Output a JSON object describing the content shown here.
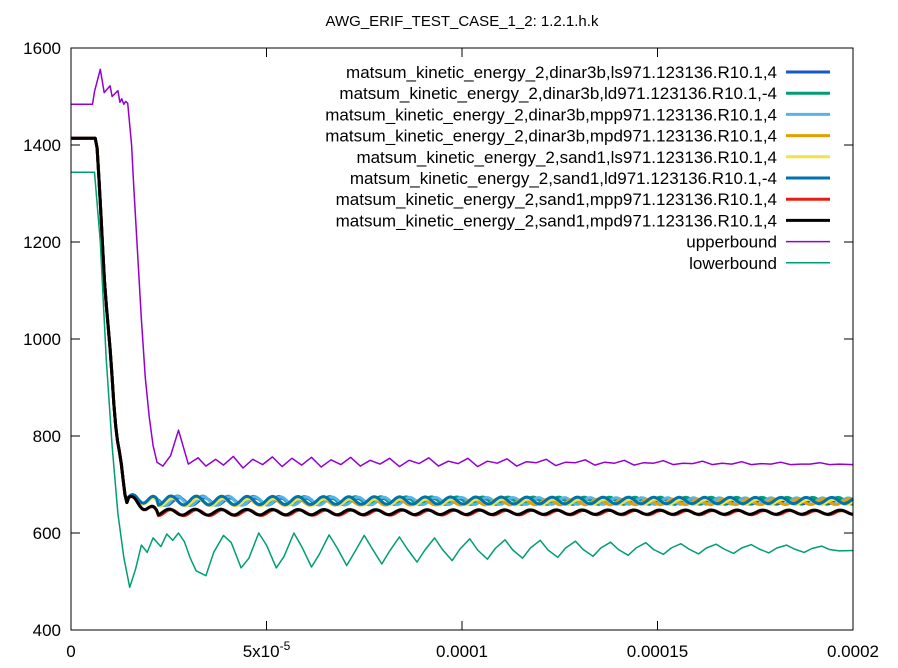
{
  "chart_data": {
    "type": "line",
    "title": "AWG_ERIF_TEST_CASE_1_2: 1.2.1.h.k",
    "xlabel": "",
    "ylabel": "",
    "xlim": [
      0,
      0.0002
    ],
    "ylim": [
      400,
      1600
    ],
    "x_ticks": [
      {
        "value": 0,
        "label": "0"
      },
      {
        "value": 5e-05,
        "label": "5x10",
        "sup": "-5"
      },
      {
        "value": 0.0001,
        "label": "0.0001"
      },
      {
        "value": 0.00015,
        "label": "0.00015"
      },
      {
        "value": 0.0002,
        "label": "0.0002"
      }
    ],
    "y_ticks": [
      400,
      600,
      800,
      1000,
      1200,
      1400,
      1600
    ],
    "grid": false,
    "legend_position": "top-right",
    "series": [
      {
        "name": "matsum_kinetic_energy_2,dinar3b,ls971.123136.R10.1,4",
        "color": "#1a55c8",
        "width": 3,
        "base": 665,
        "amp": 5,
        "period": 6.5e-06
      },
      {
        "name": "matsum_kinetic_energy_2,dinar3b,ld971.123136.R10.1,-4",
        "color": "#009e73",
        "width": 3,
        "base": 667,
        "amp": 6,
        "period": 6.5e-06
      },
      {
        "name": "matsum_kinetic_energy_2,dinar3b,mpp971.123136.R10.1,4",
        "color": "#56b4e9",
        "width": 3,
        "base": 666,
        "amp": 6,
        "period": 6.6e-06
      },
      {
        "name": "matsum_kinetic_energy_2,dinar3b,mpd971.123136.R10.1,4",
        "color": "#e69f00",
        "width": 3,
        "base": 664,
        "amp": 5,
        "period": 6.4e-06
      },
      {
        "name": "matsum_kinetic_energy_2,sand1,ls971.123136.R10.1,4",
        "color": "#f0e442",
        "width": 3,
        "base": 664,
        "amp": 5,
        "period": 6.5e-06
      },
      {
        "name": "matsum_kinetic_energy_2,sand1,ld971.123136.R10.1,-4",
        "color": "#0072b2",
        "width": 3,
        "base": 667,
        "amp": 6,
        "period": 6.5e-06
      },
      {
        "name": "matsum_kinetic_energy_2,sand1,mpp971.123136.R10.1,4",
        "color": "#e51e10",
        "width": 3,
        "base": 642,
        "amp": 4,
        "period": 6.6e-06
      },
      {
        "name": "matsum_kinetic_energy_2,sand1,mpd971.123136.R10.1,4",
        "color": "#000000",
        "width": 3,
        "base": 643,
        "amp": 4,
        "period": 6.6e-06
      },
      {
        "name": "upperbound",
        "color": "#9400d3",
        "width": 1.5,
        "x": [
          0,
          5.5e-06,
          6e-06,
          7.5e-06,
          8.5e-06,
          1e-05,
          1.05e-05,
          1.2e-05,
          1.25e-05,
          1.3e-05,
          1.35e-05,
          1.4e-05,
          1.45e-05,
          1.55e-05,
          1.6e-05,
          1.7e-05,
          1.8e-05,
          1.9e-05,
          2e-05,
          2.1e-05,
          2.2e-05,
          2.35e-05,
          2.55e-05,
          2.75e-05,
          3e-05,
          3.25e-05,
          3.45e-05,
          3.7e-05,
          3.9e-05,
          4.15e-05,
          4.4e-05,
          4.65e-05,
          4.9e-05,
          5.15e-05,
          5.4e-05,
          5.65e-05,
          5.9e-05,
          6.15e-05,
          6.4e-05,
          6.65e-05,
          6.9e-05,
          7.15e-05,
          7.4e-05,
          7.65e-05,
          7.9e-05,
          8.15e-05,
          8.4e-05,
          8.65e-05,
          8.9e-05,
          9.15e-05,
          9.4e-05,
          9.65e-05,
          9.9e-05,
          0.0001015,
          0.000104,
          0.0001065,
          0.000109,
          0.0001115,
          0.000114,
          0.0001165,
          0.000119,
          0.0001215,
          0.000124,
          0.0001265,
          0.000129,
          0.0001315,
          0.000134,
          0.0001365,
          0.000139,
          0.0001415,
          0.000144,
          0.0001465,
          0.000149,
          0.0001515,
          0.000154,
          0.0001565,
          0.000159,
          0.0001615,
          0.000164,
          0.0001665,
          0.000169,
          0.0001715,
          0.000174,
          0.0001765,
          0.000179,
          0.0001815,
          0.000184,
          0.0001865,
          0.000189,
          0.0001915,
          0.000194,
          0.0001965,
          0.0002
        ],
        "y": [
          1484,
          1484,
          1510,
          1556,
          1508,
          1522,
          1500,
          1512,
          1488,
          1495,
          1484,
          1490,
          1486,
          1400,
          1320,
          1180,
          1040,
          920,
          840,
          780,
          746,
          738,
          760,
          812,
          742,
          755,
          738,
          752,
          740,
          758,
          734,
          752,
          741,
          757,
          737,
          754,
          740,
          756,
          736,
          751,
          741,
          756,
          738,
          750,
          742,
          754,
          737,
          750,
          743,
          755,
          738,
          748,
          743,
          754,
          737,
          748,
          744,
          753,
          738,
          747,
          745,
          752,
          739,
          746,
          745,
          751,
          740,
          746,
          744,
          750,
          740,
          745,
          744,
          749,
          741,
          744,
          743,
          748,
          741,
          744,
          742,
          747,
          741,
          743,
          742,
          746,
          741,
          742,
          742,
          745,
          741,
          742,
          741
        ]
      },
      {
        "name": "lowerbound",
        "color": "#009e73",
        "width": 1.5,
        "x": [
          0,
          6e-06,
          7.5e-06,
          9e-06,
          1.05e-05,
          1.2e-05,
          1.35e-05,
          1.5e-05,
          1.65e-05,
          1.8e-05,
          1.95e-05,
          2.1e-05,
          2.3e-05,
          2.45e-05,
          2.6e-05,
          2.75e-05,
          2.9e-05,
          3.05e-05,
          3.2e-05,
          3.45e-05,
          3.65e-05,
          3.9e-05,
          4.1e-05,
          4.35e-05,
          4.55e-05,
          4.8e-05,
          5e-05,
          5.25e-05,
          5.45e-05,
          5.7e-05,
          5.9e-05,
          6.15e-05,
          6.35e-05,
          6.6e-05,
          6.8e-05,
          7.05e-05,
          7.25e-05,
          7.5e-05,
          7.7e-05,
          7.95e-05,
          8.15e-05,
          8.4e-05,
          8.6e-05,
          8.85e-05,
          9.05e-05,
          9.3e-05,
          9.5e-05,
          9.75e-05,
          9.95e-05,
          0.000102,
          0.000104,
          0.0001065,
          0.0001085,
          0.000111,
          0.000113,
          0.0001155,
          0.0001175,
          0.00012,
          0.000122,
          0.0001245,
          0.0001265,
          0.000129,
          0.000131,
          0.0001335,
          0.0001355,
          0.000138,
          0.00014,
          0.0001425,
          0.0001445,
          0.000147,
          0.000149,
          0.0001515,
          0.0001535,
          0.000156,
          0.000158,
          0.0001605,
          0.0001625,
          0.000165,
          0.000167,
          0.0001695,
          0.0001715,
          0.000174,
          0.000176,
          0.0001785,
          0.0001805,
          0.000183,
          0.000185,
          0.0001875,
          0.0001895,
          0.000192,
          0.000194,
          0.0001965,
          0.0002
        ],
        "y": [
          1344,
          1344,
          1200,
          960,
          780,
          640,
          550,
          488,
          525,
          575,
          560,
          590,
          572,
          598,
          585,
          600,
          582,
          548,
          522,
          512,
          560,
          595,
          580,
          528,
          548,
          600,
          575,
          528,
          552,
          600,
          572,
          530,
          556,
          596,
          570,
          533,
          560,
          595,
          568,
          536,
          563,
          592,
          567,
          540,
          565,
          590,
          566,
          543,
          567,
          588,
          565,
          546,
          568,
          586,
          565,
          548,
          569,
          585,
          565,
          550,
          569,
          583,
          566,
          552,
          569,
          581,
          566,
          554,
          569,
          580,
          566,
          556,
          569,
          578,
          567,
          557,
          569,
          577,
          567,
          558,
          569,
          576,
          567,
          559,
          569,
          575,
          567,
          560,
          568,
          573,
          566,
          563,
          564
        ]
      }
    ]
  }
}
